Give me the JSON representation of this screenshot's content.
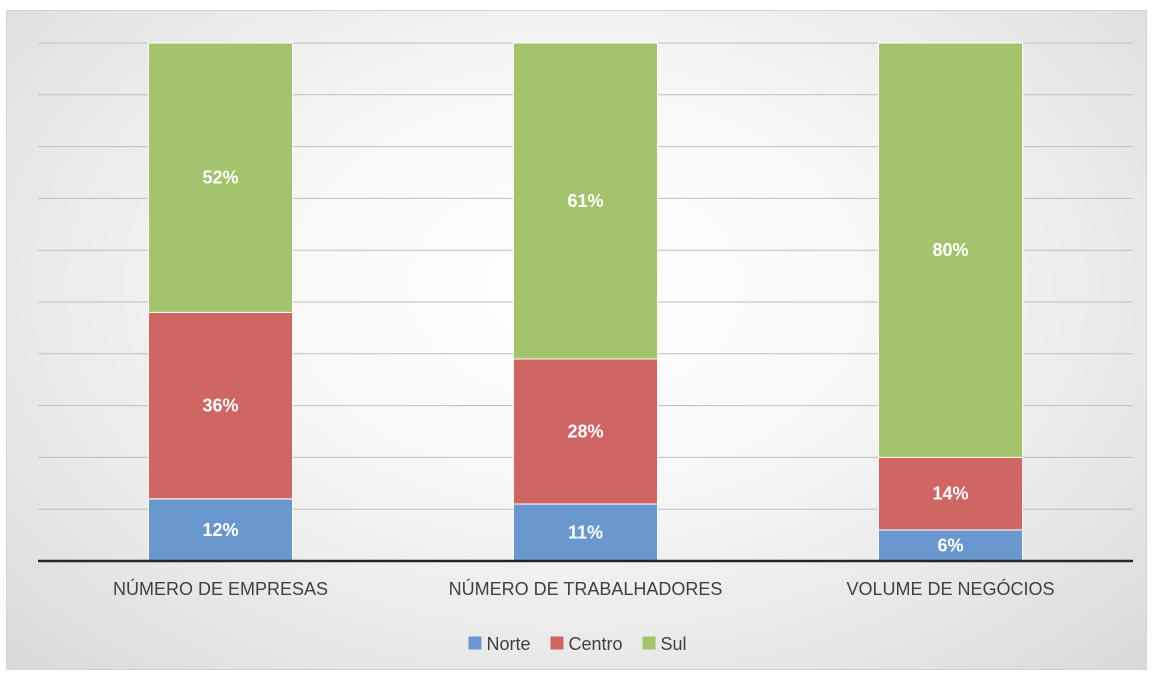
{
  "chart_data": {
    "type": "bar",
    "stacked": true,
    "percent_stacked": true,
    "categories": [
      "NÚMERO DE EMPRESAS",
      "NÚMERO DE TRABALHADORES",
      "VOLUME DE NEGÓCIOS"
    ],
    "series": [
      {
        "name": "Norte",
        "values": [
          12,
          11,
          6
        ],
        "labels": [
          "12%",
          "11%",
          "6%"
        ],
        "color": "#6a97ce"
      },
      {
        "name": "Centro",
        "values": [
          36,
          28,
          14
        ],
        "labels": [
          "36%",
          "28%",
          "14%"
        ],
        "color": "#cf6663"
      },
      {
        "name": "Sul",
        "values": [
          52,
          61,
          80
        ],
        "labels": [
          "52%",
          "61%",
          "80%"
        ],
        "color": "#a3c46c"
      }
    ],
    "ylim": [
      0,
      100
    ],
    "gridline_count": 10,
    "grid": true,
    "y_axis_labels_visible": false,
    "legend": "bottom",
    "title": "",
    "xlabel": "",
    "ylabel": ""
  }
}
